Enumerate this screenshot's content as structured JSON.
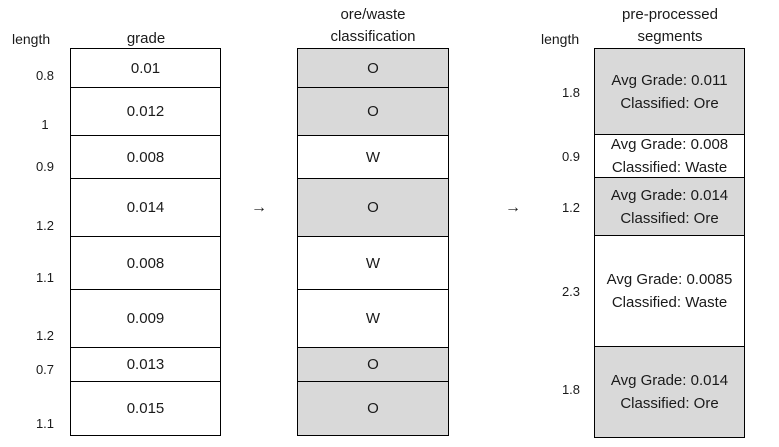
{
  "headers": {
    "length_left": "length",
    "grade": "grade",
    "classification": "ore/waste\nclassification",
    "length_right": "length",
    "segments": "pre-processed\nsegments"
  },
  "rows": [
    {
      "length": "0.8",
      "grade": "0.01",
      "class": "O"
    },
    {
      "length": "1",
      "grade": "0.012",
      "class": "O"
    },
    {
      "length": "0.9",
      "grade": "0.008",
      "class": "W"
    },
    {
      "length": "1.2",
      "grade": "0.014",
      "class": "O"
    },
    {
      "length": "1.1",
      "grade": "0.008",
      "class": "W"
    },
    {
      "length": "1.2",
      "grade": "0.009",
      "class": "W"
    },
    {
      "length": "0.7",
      "grade": "0.013",
      "class": "O"
    },
    {
      "length": "1.1",
      "grade": "0.015",
      "class": "O"
    }
  ],
  "segments": [
    {
      "length": "1.8",
      "grade_text": "Avg Grade: 0.011",
      "class_text": "Classified: Ore",
      "ore": true
    },
    {
      "length": "0.9",
      "grade_text": "Avg Grade: 0.008",
      "class_text": "Classified: Waste",
      "ore": false
    },
    {
      "length": "1.2",
      "grade_text": "Avg Grade: 0.014",
      "class_text": "Classified: Ore",
      "ore": true
    },
    {
      "length": "2.3",
      "grade_text": "Avg Grade: 0.0085",
      "class_text": "Classified: Waste",
      "ore": false
    },
    {
      "length": "1.8",
      "grade_text": "Avg Grade: 0.014",
      "class_text": "Classified: Ore",
      "ore": true
    }
  ],
  "arrows": [
    "→",
    "→"
  ]
}
